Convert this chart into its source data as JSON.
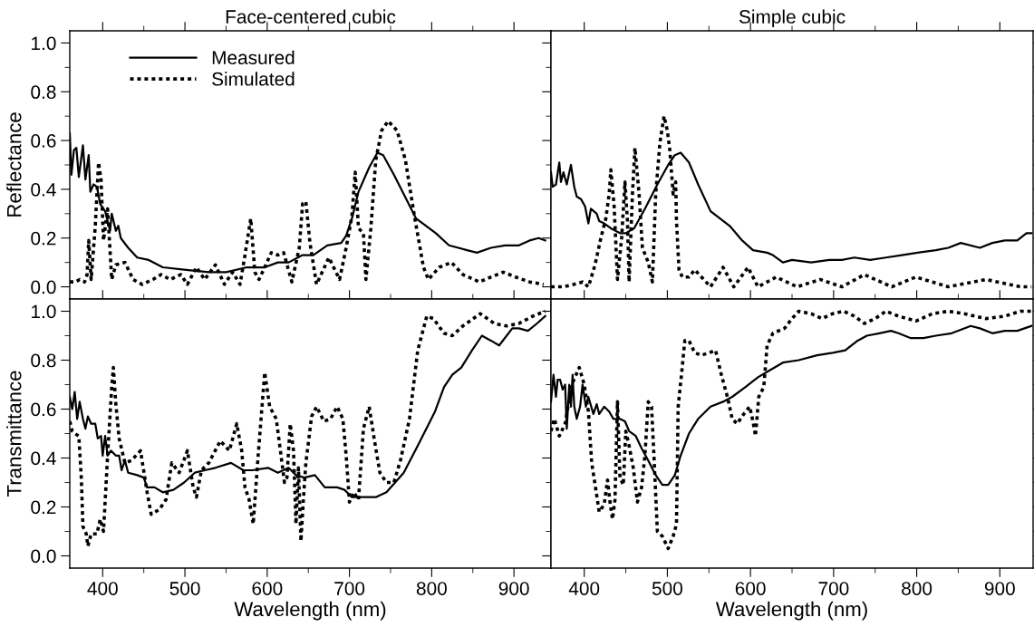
{
  "chart_data": [
    {
      "type": "line",
      "title": "Face-centered cubic",
      "ylabel": "Reflectance",
      "xlim": [
        360,
        945
      ],
      "ylim": [
        -0.05,
        1.05
      ],
      "xticks": [
        400,
        500,
        600,
        700,
        800,
        900
      ],
      "yticks": [
        {
          "value": 0,
          "label": "0.0"
        },
        {
          "value": 0.2,
          "label": "0.2"
        },
        {
          "value": 0.4,
          "label": "0.4"
        },
        {
          "value": 0.6,
          "label": "0.6"
        },
        {
          "value": 0.8,
          "label": "0.8"
        },
        {
          "value": 1,
          "label": "1.0"
        }
      ],
      "tick_labels": "y",
      "legend": "top left",
      "grid": false,
      "series": [
        {
          "name": "Measured",
          "color": "#000000",
          "line_style": "solid",
          "x": [
            360,
            362,
            365,
            368,
            371,
            376,
            379,
            383,
            385,
            389,
            393,
            397,
            403,
            409,
            411,
            416,
            419,
            422,
            431,
            442,
            456,
            473,
            499,
            529,
            550,
            575,
            597,
            613,
            626,
            643,
            656,
            673,
            690,
            696,
            703,
            711,
            724,
            734,
            741,
            754,
            766,
            781,
            805,
            821,
            843,
            855,
            872,
            889,
            906,
            919,
            930,
            938
          ],
          "values": [
            0.63,
            0.46,
            0.56,
            0.57,
            0.45,
            0.58,
            0.44,
            0.54,
            0.39,
            0.42,
            0.41,
            0.34,
            0.31,
            0.23,
            0.3,
            0.23,
            0.25,
            0.2,
            0.16,
            0.12,
            0.11,
            0.08,
            0.07,
            0.06,
            0.06,
            0.08,
            0.08,
            0.1,
            0.1,
            0.13,
            0.13,
            0.17,
            0.18,
            0.21,
            0.28,
            0.39,
            0.49,
            0.55,
            0.54,
            0.46,
            0.38,
            0.28,
            0.22,
            0.17,
            0.15,
            0.14,
            0.16,
            0.17,
            0.17,
            0.19,
            0.2,
            0.19
          ]
        },
        {
          "name": "Simulated",
          "color": "#000000",
          "line_style": "dotted",
          "x": [
            360,
            367,
            372,
            378,
            381,
            383,
            386,
            391,
            395,
            398,
            401,
            406,
            411,
            416,
            427,
            437,
            448,
            461,
            471,
            482,
            495,
            503,
            514,
            524,
            537,
            548,
            558,
            567,
            573,
            580,
            585,
            590,
            597,
            605,
            613,
            620,
            630,
            639,
            643,
            647,
            652,
            660,
            675,
            688,
            696,
            703,
            707,
            711,
            717,
            720,
            726,
            732,
            739,
            747,
            758,
            768,
            779,
            790,
            796,
            809,
            824,
            838,
            858,
            872,
            887,
            902,
            919,
            936
          ],
          "values": [
            0.02,
            0.02,
            0.03,
            0.02,
            0.05,
            0.19,
            0.03,
            0.25,
            0.51,
            0.44,
            0.19,
            0.32,
            0.03,
            0.09,
            0.1,
            0.03,
            0.01,
            0.03,
            0.05,
            0.03,
            0.05,
            0.01,
            0.08,
            0.03,
            0.09,
            0.01,
            0.06,
            0.01,
            0.13,
            0.28,
            0.06,
            0.03,
            0.08,
            0.14,
            0.13,
            0.14,
            0.02,
            0.16,
            0.34,
            0.35,
            0.18,
            0.01,
            0.12,
            0.03,
            0.16,
            0.29,
            0.47,
            0.24,
            0.22,
            0.03,
            0.24,
            0.52,
            0.64,
            0.68,
            0.64,
            0.52,
            0.29,
            0.08,
            0.03,
            0.08,
            0.1,
            0.05,
            0.02,
            0.04,
            0.06,
            0.04,
            0.02,
            0.01
          ]
        }
      ]
    },
    {
      "type": "line",
      "title": "Simple cubic",
      "xlim": [
        360,
        940
      ],
      "ylim": [
        -0.05,
        1.05
      ],
      "xticks": [
        400,
        500,
        600,
        700,
        800,
        900
      ],
      "yticks": [
        0,
        0.2,
        0.4,
        0.6,
        0.8,
        1
      ],
      "tick_labels": false,
      "grid": false,
      "series": [
        {
          "color": "#000000",
          "line_style": "solid",
          "x": [
            360,
            362,
            366,
            370,
            372,
            375,
            379,
            384,
            388,
            391,
            396,
            401,
            405,
            408,
            415,
            418,
            424,
            432,
            443,
            450,
            460,
            473,
            488,
            501,
            509,
            516,
            526,
            537,
            552,
            575,
            590,
            603,
            620,
            627,
            639,
            650,
            673,
            695,
            710,
            725,
            744,
            763,
            782,
            801,
            823,
            838,
            853,
            876,
            891,
            906,
            921,
            932,
            938
          ],
          "values": [
            0.47,
            0.41,
            0.42,
            0.51,
            0.43,
            0.47,
            0.42,
            0.5,
            0.41,
            0.37,
            0.36,
            0.33,
            0.26,
            0.32,
            0.3,
            0.27,
            0.26,
            0.24,
            0.22,
            0.22,
            0.24,
            0.32,
            0.42,
            0.5,
            0.54,
            0.55,
            0.51,
            0.42,
            0.31,
            0.25,
            0.19,
            0.15,
            0.14,
            0.13,
            0.1,
            0.11,
            0.1,
            0.11,
            0.11,
            0.12,
            0.11,
            0.12,
            0.13,
            0.14,
            0.15,
            0.16,
            0.18,
            0.16,
            0.18,
            0.19,
            0.19,
            0.22,
            0.22
          ]
        },
        {
          "color": "#000000",
          "line_style": "dotted",
          "x": [
            360,
            375,
            388,
            398,
            405,
            413,
            420,
            426,
            430,
            432,
            436,
            440,
            445,
            449,
            452,
            454,
            458,
            461,
            466,
            470,
            477,
            482,
            486,
            491,
            496,
            500,
            503,
            507,
            510,
            511,
            514,
            518,
            526,
            533,
            552,
            567,
            580,
            597,
            609,
            631,
            656,
            684,
            710,
            737,
            770,
            799,
            838,
            883,
            925,
            938
          ],
          "values": [
            0.0,
            0.0,
            0.01,
            0.02,
            0.0,
            0.09,
            0.2,
            0.28,
            0.38,
            0.48,
            0.33,
            0.03,
            0.2,
            0.43,
            0.27,
            0.02,
            0.38,
            0.57,
            0.38,
            0.16,
            0.1,
            0.02,
            0.38,
            0.59,
            0.7,
            0.64,
            0.56,
            0.38,
            0.43,
            0.27,
            0.07,
            0.04,
            0.04,
            0.07,
            0.0,
            0.08,
            0.0,
            0.08,
            0.0,
            0.04,
            0.0,
            0.03,
            0.0,
            0.05,
            0.0,
            0.04,
            0.0,
            0.03,
            0.0,
            0.0
          ]
        }
      ]
    },
    {
      "type": "line",
      "xlabel": "Wavelength (nm)",
      "ylabel": "Transmittance",
      "xlim": [
        360,
        945
      ],
      "ylim": [
        -0.05,
        1.05
      ],
      "xticks": [
        400,
        500,
        600,
        700,
        800,
        900
      ],
      "yticks": [
        {
          "value": 0,
          "label": "0.0"
        },
        {
          "value": 0.2,
          "label": "0.2"
        },
        {
          "value": 0.4,
          "label": "0.4"
        },
        {
          "value": 0.6,
          "label": "0.6"
        },
        {
          "value": 0.8,
          "label": "0.8"
        },
        {
          "value": 1,
          "label": "1.0"
        }
      ],
      "grid": false,
      "series": [
        {
          "color": "#000000",
          "line_style": "solid",
          "x": [
            360,
            363,
            366,
            369,
            372,
            376,
            379,
            382,
            386,
            391,
            394,
            398,
            400,
            403,
            406,
            410,
            416,
            420,
            423,
            427,
            431,
            442,
            450,
            454,
            463,
            473,
            486,
            499,
            512,
            524,
            537,
            556,
            571,
            582,
            601,
            613,
            626,
            635,
            645,
            658,
            670,
            685,
            694,
            703,
            715,
            732,
            745,
            766,
            783,
            804,
            815,
            825,
            836,
            849,
            861,
            872,
            882,
            898,
            906,
            917,
            928,
            938
          ],
          "values": [
            0.65,
            0.6,
            0.67,
            0.56,
            0.63,
            0.56,
            0.52,
            0.57,
            0.54,
            0.54,
            0.48,
            0.49,
            0.41,
            0.49,
            0.41,
            0.43,
            0.41,
            0.41,
            0.35,
            0.39,
            0.34,
            0.33,
            0.32,
            0.28,
            0.28,
            0.26,
            0.27,
            0.3,
            0.34,
            0.35,
            0.36,
            0.38,
            0.35,
            0.35,
            0.36,
            0.34,
            0.36,
            0.33,
            0.32,
            0.33,
            0.28,
            0.28,
            0.27,
            0.24,
            0.24,
            0.24,
            0.26,
            0.34,
            0.45,
            0.59,
            0.69,
            0.74,
            0.77,
            0.84,
            0.9,
            0.88,
            0.86,
            0.93,
            0.93,
            0.92,
            0.95,
            0.98
          ]
        },
        {
          "color": "#000000",
          "line_style": "dotted",
          "x": [
            360,
            363,
            366,
            371,
            374,
            376,
            380,
            382,
            386,
            393,
            397,
            401,
            406,
            411,
            413,
            416,
            420,
            427,
            435,
            446,
            454,
            459,
            469,
            477,
            484,
            493,
            503,
            510,
            514,
            520,
            529,
            543,
            554,
            563,
            569,
            573,
            578,
            583,
            589,
            597,
            603,
            611,
            618,
            621,
            624,
            628,
            632,
            635,
            638,
            641,
            644,
            647,
            654,
            660,
            669,
            677,
            685,
            692,
            696,
            700,
            705,
            711,
            717,
            724,
            730,
            737,
            745,
            754,
            762,
            773,
            783,
            794,
            802,
            815,
            825,
            838,
            859,
            876,
            891,
            906,
            923,
            938
          ],
          "values": [
            0.55,
            0.51,
            0.5,
            0.49,
            0.32,
            0.12,
            0.09,
            0.04,
            0.09,
            0.09,
            0.15,
            0.1,
            0.41,
            0.69,
            0.77,
            0.62,
            0.48,
            0.38,
            0.39,
            0.43,
            0.26,
            0.17,
            0.19,
            0.23,
            0.38,
            0.34,
            0.43,
            0.28,
            0.24,
            0.35,
            0.38,
            0.47,
            0.43,
            0.54,
            0.43,
            0.28,
            0.23,
            0.13,
            0.41,
            0.75,
            0.61,
            0.56,
            0.38,
            0.3,
            0.32,
            0.54,
            0.43,
            0.13,
            0.36,
            0.06,
            0.23,
            0.38,
            0.57,
            0.61,
            0.55,
            0.56,
            0.61,
            0.56,
            0.41,
            0.22,
            0.26,
            0.23,
            0.52,
            0.61,
            0.48,
            0.34,
            0.3,
            0.3,
            0.39,
            0.56,
            0.84,
            0.98,
            0.97,
            0.91,
            0.9,
            0.94,
            0.99,
            0.95,
            0.94,
            0.95,
            0.98,
            1.0
          ]
        }
      ]
    },
    {
      "type": "line",
      "xlabel": "Wavelength (nm)",
      "xlim": [
        360,
        940
      ],
      "ylim": [
        -0.05,
        1.05
      ],
      "xticks": [
        400,
        500,
        600,
        700,
        800,
        900
      ],
      "yticks": [
        0,
        0.2,
        0.4,
        0.6,
        0.8,
        1
      ],
      "tick_labels": "x",
      "grid": false,
      "series": [
        {
          "color": "#000000",
          "line_style": "solid",
          "x": [
            360,
            363,
            366,
            368,
            371,
            374,
            377,
            379,
            382,
            384,
            386,
            388,
            391,
            395,
            398,
            402,
            405,
            411,
            415,
            418,
            424,
            430,
            435,
            443,
            449,
            454,
            462,
            469,
            477,
            486,
            494,
            501,
            509,
            516,
            526,
            537,
            552,
            567,
            578,
            594,
            609,
            624,
            639,
            658,
            680,
            699,
            714,
            729,
            740,
            755,
            769,
            778,
            793,
            808,
            823,
            842,
            865,
            876,
            891,
            906,
            921,
            938
          ],
          "values": [
            0.63,
            0.74,
            0.65,
            0.72,
            0.72,
            0.68,
            0.7,
            0.52,
            0.7,
            0.61,
            0.74,
            0.61,
            0.56,
            0.61,
            0.7,
            0.61,
            0.65,
            0.58,
            0.62,
            0.58,
            0.61,
            0.59,
            0.56,
            0.56,
            0.55,
            0.51,
            0.49,
            0.44,
            0.39,
            0.33,
            0.29,
            0.29,
            0.33,
            0.41,
            0.5,
            0.56,
            0.61,
            0.63,
            0.65,
            0.69,
            0.73,
            0.76,
            0.79,
            0.8,
            0.82,
            0.83,
            0.84,
            0.88,
            0.9,
            0.91,
            0.92,
            0.91,
            0.89,
            0.89,
            0.9,
            0.91,
            0.94,
            0.93,
            0.91,
            0.92,
            0.92,
            0.94
          ]
        },
        {
          "color": "#000000",
          "line_style": "dotted",
          "x": [
            360,
            364,
            370,
            377,
            385,
            394,
            400,
            405,
            409,
            414,
            418,
            424,
            428,
            431,
            434,
            437,
            440,
            443,
            447,
            450,
            454,
            459,
            464,
            469,
            473,
            477,
            481,
            484,
            488,
            494,
            501,
            507,
            511,
            513,
            517,
            521,
            526,
            533,
            541,
            550,
            558,
            565,
            573,
            578,
            584,
            592,
            599,
            603,
            606,
            610,
            616,
            620,
            627,
            641,
            650,
            658,
            673,
            686,
            699,
            712,
            725,
            737,
            750,
            763,
            778,
            799,
            819,
            838,
            857,
            883,
            906,
            925,
            938
          ],
          "values": [
            0.51,
            0.56,
            0.49,
            0.54,
            0.7,
            0.77,
            0.7,
            0.59,
            0.38,
            0.27,
            0.18,
            0.21,
            0.31,
            0.22,
            0.15,
            0.23,
            0.63,
            0.32,
            0.29,
            0.51,
            0.45,
            0.36,
            0.22,
            0.28,
            0.41,
            0.63,
            0.61,
            0.4,
            0.1,
            0.08,
            0.03,
            0.08,
            0.13,
            0.61,
            0.74,
            0.88,
            0.88,
            0.83,
            0.82,
            0.83,
            0.84,
            0.74,
            0.64,
            0.56,
            0.54,
            0.58,
            0.61,
            0.55,
            0.49,
            0.65,
            0.69,
            0.86,
            0.91,
            0.93,
            0.97,
            1.0,
            0.99,
            0.97,
            0.99,
            1.0,
            0.98,
            0.95,
            0.97,
            1.0,
            0.98,
            0.96,
            0.99,
            1.0,
            0.99,
            0.97,
            0.98,
            1.0,
            1.0
          ]
        }
      ]
    }
  ]
}
